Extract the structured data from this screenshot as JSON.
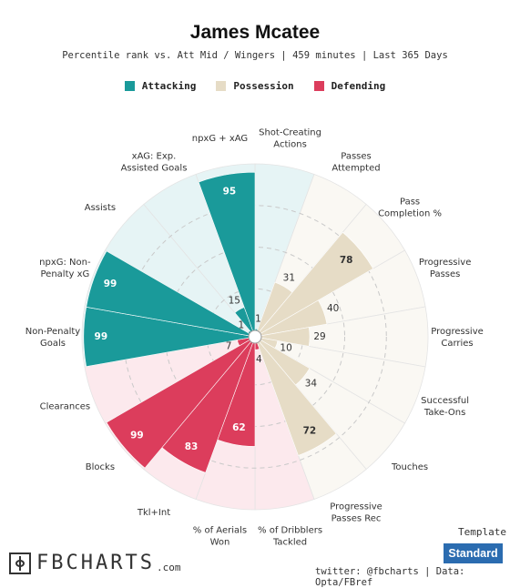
{
  "header": {
    "title": "James Mcatee",
    "subtitle": "Percentile rank vs. Att Mid / Wingers | 459 minutes | Last 365 Days"
  },
  "colors": {
    "attacking": "#1a9a9a",
    "possession": "#e6dcc6",
    "defending": "#dc3d5c",
    "attacking_bg": "#e6f4f5",
    "possession_bg": "#faf8f3",
    "defending_bg": "#fce9ed",
    "template_button": "#2b6cb0"
  },
  "chart_data": {
    "type": "polar-bar",
    "rlim": [
      0,
      100
    ],
    "legend": [
      {
        "name": "Attacking",
        "key": "attacking"
      },
      {
        "name": "Possession",
        "key": "possession"
      },
      {
        "name": "Defending",
        "key": "defending"
      }
    ],
    "categories": [
      {
        "label": "Shot-Creating Actions",
        "lines": [
          "Shot-Creating",
          "Actions"
        ],
        "value": 1,
        "group": "attacking"
      },
      {
        "label": "Passes Attempted",
        "lines": [
          "Passes",
          "Attempted"
        ],
        "value": 31,
        "group": "possession"
      },
      {
        "label": "Pass Completion %",
        "lines": [
          "Pass",
          "Completion %"
        ],
        "value": 78,
        "group": "possession"
      },
      {
        "label": "Progressive Passes",
        "lines": [
          "Progressive",
          "Passes"
        ],
        "value": 40,
        "group": "possession"
      },
      {
        "label": "Progressive Carries",
        "lines": [
          "Progressive",
          "Carries"
        ],
        "value": 29,
        "group": "possession"
      },
      {
        "label": "Successful Take-Ons",
        "lines": [
          "Successful",
          "Take-Ons"
        ],
        "value": 10,
        "group": "possession"
      },
      {
        "label": "Touches",
        "lines": [
          "Touches"
        ],
        "value": 34,
        "group": "possession"
      },
      {
        "label": "Progressive Passes Rec",
        "lines": [
          "Progressive",
          "Passes Rec"
        ],
        "value": 72,
        "group": "possession"
      },
      {
        "label": "% of Dribblers Tackled",
        "lines": [
          "% of Dribblers",
          "Tackled"
        ],
        "value": 4,
        "group": "defending"
      },
      {
        "label": "% of Aerials Won",
        "lines": [
          "% of Aerials",
          "Won"
        ],
        "value": 62,
        "group": "defending"
      },
      {
        "label": "Tkl+Int",
        "lines": [
          "Tkl+Int"
        ],
        "value": 83,
        "group": "defending"
      },
      {
        "label": "Blocks",
        "lines": [
          "Blocks"
        ],
        "value": 99,
        "group": "defending"
      },
      {
        "label": "Clearances",
        "lines": [
          "Clearances"
        ],
        "value": 7,
        "group": "defending"
      },
      {
        "label": "Non-Penalty Goals",
        "lines": [
          "Non-Penalty",
          "Goals"
        ],
        "value": 99,
        "group": "attacking"
      },
      {
        "label": "npxG: Non-Penalty xG",
        "lines": [
          "npxG: Non-",
          "Penalty xG"
        ],
        "value": 99,
        "group": "attacking"
      },
      {
        "label": "Assists",
        "lines": [
          "Assists"
        ],
        "value": 1,
        "group": "attacking"
      },
      {
        "label": "xAG: Exp. Assisted Goals",
        "lines": [
          "xAG: Exp.",
          "Assisted Goals"
        ],
        "value": 15,
        "group": "attacking"
      },
      {
        "label": "npxG + xAG",
        "lines": [
          "npxG + xAG"
        ],
        "value": 95,
        "group": "attacking"
      }
    ]
  },
  "footer": {
    "logo_text": "FBCHARTS",
    "logo_suffix": ".com",
    "template_label": "Template",
    "template_button": "Standard",
    "credits": "twitter: @fbcharts | Data: Opta/FBref"
  }
}
